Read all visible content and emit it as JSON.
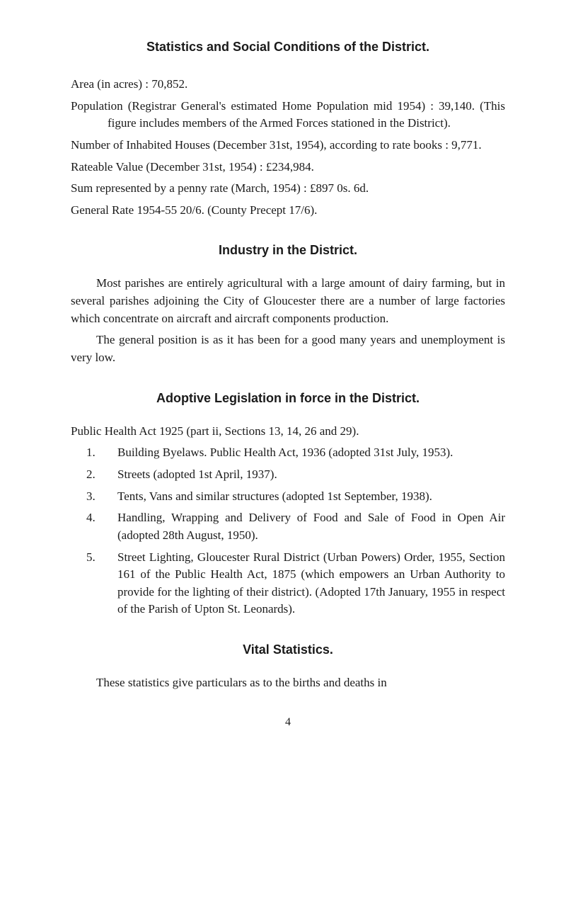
{
  "h1": "Statistics and Social Conditions of the District.",
  "area": "Area (in acres) : 70,852.",
  "population": "Population (Registrar General's estimated Home Population mid 1954) : 39,140.    (This figure includes members of the Armed Forces stationed in the District).",
  "inhabited": "Number of Inhabited Houses (December 31st, 1954), according to rate books : 9,771.",
  "rateable": "Rateable Value (December 31st, 1954) : £234,984.",
  "sum": "Sum represented by a penny rate (March, 1954) : £897  0s. 6d.",
  "general_rate": "General Rate 1954-55 20/6.   (County Precept 17/6).",
  "h2": "Industry in the District.",
  "industry_p1": "Most parishes are entirely agricultural with a large amount of dairy farming, but in several parishes adjoining the City of Gloucester there are a number of large factories which concentrate on aircraft and aircraft components production.",
  "industry_p2": "The general position is as it has been for a good many years and unemployment is very low.",
  "h3": "Adoptive Legislation in force in the District.",
  "adopt_intro": "Public Health Act 1925 (part ii, Sections 13, 14, 26 and 29).",
  "items": [
    {
      "n": "1.",
      "t": "Building Byelaws.   Public Health Act, 1936 (adopted 31st July, 1953)."
    },
    {
      "n": "2.",
      "t": "Streets (adopted 1st April, 1937)."
    },
    {
      "n": "3.",
      "t": "Tents, Vans and similar structures (adopted 1st September, 1938)."
    },
    {
      "n": "4.",
      "t": "Handling, Wrapping and Delivery of Food and Sale of Food in Open Air (adopted 28th August, 1950)."
    },
    {
      "n": "5.",
      "t": "Street Lighting, Gloucester Rural District (Urban Powers) Order, 1955, Section 161 of the Public Health Act, 1875 (which empowers an Urban Authority to provide for the lighting of their district).   (Adopted 17th January, 1955 in respect of the Parish of Upton St. Leonards)."
    }
  ],
  "h4": "Vital Statistics.",
  "vital_p": "These statistics give particulars as to the births and deaths in",
  "page_number": "4"
}
